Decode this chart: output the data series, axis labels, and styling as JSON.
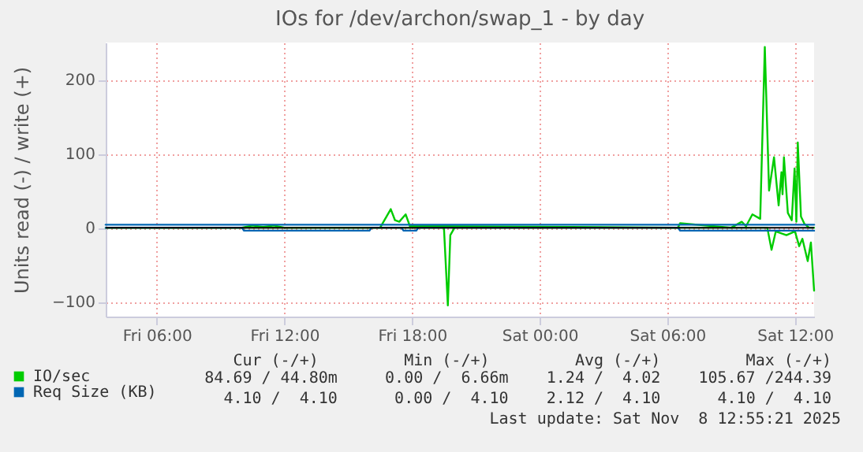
{
  "chart_data": {
    "type": "line",
    "title": "IOs for /dev/archon/swap_1 - by day",
    "ylabel": "Units read (-) / write (+)",
    "xlim": [
      "2025-11-07T03:36",
      "2025-11-08T12:54"
    ],
    "xticks": [
      {
        "value": "2025-11-07T06:00",
        "label": "Fri 06:00"
      },
      {
        "value": "2025-11-07T12:00",
        "label": "Fri 12:00"
      },
      {
        "value": "2025-11-07T18:00",
        "label": "Fri 18:00"
      },
      {
        "value": "2025-11-08T00:00",
        "label": "Sat 00:00"
      },
      {
        "value": "2025-11-08T06:00",
        "label": "Sat 06:00"
      },
      {
        "value": "2025-11-08T12:00",
        "label": "Sat 12:00"
      }
    ],
    "ylim": [
      -120,
      250
    ],
    "yticks": [
      -100,
      0,
      100,
      200
    ],
    "grid": true,
    "legend": "bottom",
    "marker": "none",
    "line_style": "solid",
    "ref_lines": [
      {
        "axis": "y",
        "value": 0,
        "color": "#000000"
      }
    ],
    "series": [
      {
        "name": "IO/sec",
        "color": "#00cc00",
        "x": [
          "2025-11-07T03:36",
          "2025-11-07T10:00",
          "2025-11-07T10:30",
          "2025-11-07T11:00",
          "2025-11-07T11:30",
          "2025-11-07T12:00",
          "2025-11-07T16:30",
          "2025-11-07T17:00",
          "2025-11-07T17:12",
          "2025-11-07T17:24",
          "2025-11-07T17:42",
          "2025-11-07T17:54",
          "2025-11-07T19:30",
          "2025-11-08T06:30",
          "2025-11-08T06:36",
          "2025-11-08T09:00",
          "2025-11-08T09:30",
          "2025-11-08T09:42",
          "2025-11-08T10:00",
          "2025-11-08T10:22",
          "2025-11-08T10:35",
          "2025-11-08T10:47",
          "2025-11-08T11:01",
          "2025-11-08T11:14",
          "2025-11-08T11:22",
          "2025-11-08T11:25",
          "2025-11-08T11:29",
          "2025-11-08T11:40",
          "2025-11-08T11:51",
          "2025-11-08T11:59",
          "2025-11-08T12:04",
          "2025-11-08T12:08",
          "2025-11-08T12:17",
          "2025-11-08T12:27",
          "2025-11-08T12:40",
          "2025-11-08T12:54"
        ],
        "values": [
          0,
          0,
          3,
          1,
          3,
          0,
          0,
          25,
          10,
          8,
          18,
          2,
          2,
          0,
          6,
          0,
          8,
          2,
          18,
          12,
          244,
          50,
          95,
          30,
          75,
          45,
          95,
          20,
          10,
          80,
          8,
          115,
          15,
          5,
          0,
          0
        ]
      },
      {
        "color": "#00cc00",
        "x": [
          "2025-11-07T03:36",
          "2025-11-07T19:30",
          "2025-11-07T19:41",
          "2025-11-07T19:48",
          "2025-11-07T20:00",
          "2025-11-08T10:42",
          "2025-11-08T10:54",
          "2025-11-08T11:06",
          "2025-11-08T11:36",
          "2025-11-08T12:00",
          "2025-11-08T12:12",
          "2025-11-08T12:21",
          "2025-11-08T12:36",
          "2025-11-08T12:45",
          "2025-11-08T12:54"
        ],
        "values": [
          0,
          0,
          -105,
          -10,
          0,
          0,
          -30,
          -5,
          -10,
          -5,
          -25,
          -15,
          -45,
          -20,
          -85
        ]
      },
      {
        "name": "Req Size (KB)",
        "color": "#0066b3",
        "x": [
          "2025-11-07T03:36",
          "2025-11-08T12:54"
        ],
        "values": [
          4,
          4
        ]
      },
      {
        "color": "#0066b3",
        "x": [
          "2025-11-07T03:36",
          "2025-11-07T10:00",
          "2025-11-07T10:06",
          "2025-11-07T16:00",
          "2025-11-07T16:06",
          "2025-11-07T17:30",
          "2025-11-07T17:36",
          "2025-11-07T18:12",
          "2025-11-07T18:18",
          "2025-11-08T06:30",
          "2025-11-08T06:36",
          "2025-11-08T08:30",
          "2025-11-08T08:36",
          "2025-11-08T12:54"
        ],
        "values": [
          0,
          0,
          -4,
          -4,
          0,
          0,
          -4,
          -4,
          0,
          0,
          -4,
          -4,
          -4,
          -4
        ]
      }
    ],
    "annotations": [
      "Cur (-/+)         Min (-/+)         Avg (-/+)         Max (-/+)",
      "84.69 / 44.80m     0.00 /  6.66m    1.24 /  4.02    105.67 /244.39",
      "4.10 /  4.10      0.00 /  4.10    2.12 /  4.10      4.10 /  4.10",
      "Last update: Sat Nov  8 12:55:21 2025"
    ]
  }
}
